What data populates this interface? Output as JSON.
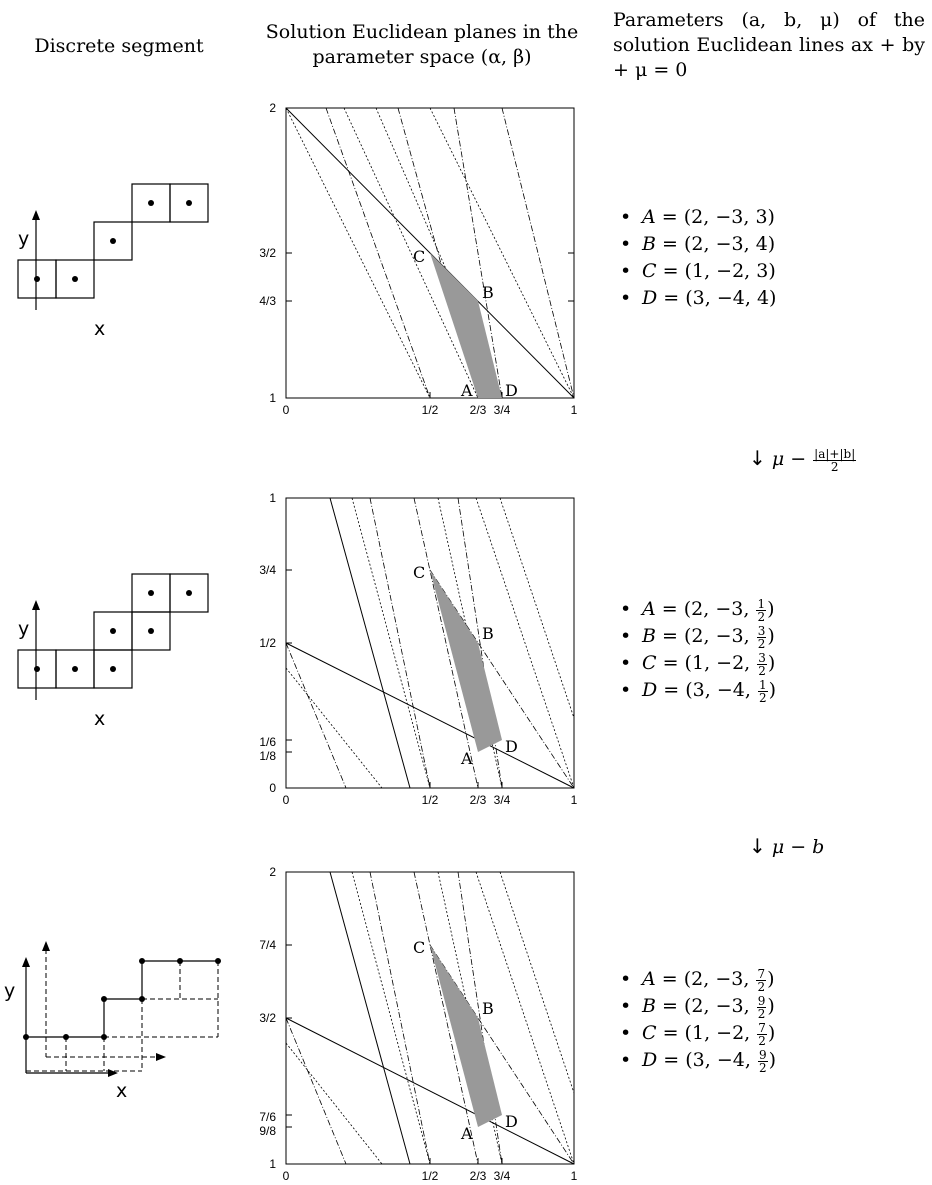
{
  "headers": {
    "col1": "Discrete segment",
    "col2": "Solution Euclidean planes in the parameter space (α, β)",
    "col3": "Parameters (a, b, μ) of the solution Euclidean lines ax + by + μ = 0"
  },
  "transforms": [
    {
      "arrow": "↓",
      "text": "μ − ",
      "num": "|a|+|b|",
      "den": "2"
    },
    {
      "arrow": "↓",
      "text": "μ − b"
    }
  ],
  "panels": [
    {
      "params": [
        {
          "label": "A",
          "a": "2",
          "b": "−3",
          "mu": "3"
        },
        {
          "label": "B",
          "a": "2",
          "b": "−3",
          "mu": "4"
        },
        {
          "label": "C",
          "a": "1",
          "b": "−2",
          "mu": "3"
        },
        {
          "label": "D",
          "a": "3",
          "b": "−4",
          "mu": "4"
        }
      ],
      "plot": {
        "x_ticks": [
          "0",
          "1/2",
          "2/3",
          "3/4",
          "1"
        ],
        "y_ticks": [
          "1",
          "4/3",
          "3/2",
          "2"
        ],
        "point_labels": [
          "A",
          "B",
          "C",
          "D"
        ]
      },
      "axes": {
        "x": "x",
        "y": "y"
      }
    },
    {
      "params": [
        {
          "label": "A",
          "a": "2",
          "b": "−3",
          "mun": "1",
          "mud": "2"
        },
        {
          "label": "B",
          "a": "2",
          "b": "−3",
          "mun": "3",
          "mud": "2"
        },
        {
          "label": "C",
          "a": "1",
          "b": "−2",
          "mun": "3",
          "mud": "2"
        },
        {
          "label": "D",
          "a": "3",
          "b": "−4",
          "mun": "1",
          "mud": "2"
        }
      ],
      "plot": {
        "x_ticks": [
          "0",
          "1/2",
          "2/3",
          "3/4",
          "1"
        ],
        "y_ticks": [
          "0",
          "1/8",
          "1/6",
          "1/2",
          "3/4",
          "1"
        ],
        "point_labels": [
          "A",
          "B",
          "C",
          "D"
        ]
      },
      "axes": {
        "x": "x",
        "y": "y"
      }
    },
    {
      "params": [
        {
          "label": "A",
          "a": "2",
          "b": "−3",
          "mun": "7",
          "mud": "2"
        },
        {
          "label": "B",
          "a": "2",
          "b": "−3",
          "mun": "9",
          "mud": "2"
        },
        {
          "label": "C",
          "a": "1",
          "b": "−2",
          "mun": "7",
          "mud": "2"
        },
        {
          "label": "D",
          "a": "3",
          "b": "−4",
          "mun": "9",
          "mud": "2"
        }
      ],
      "plot": {
        "x_ticks": [
          "0",
          "1/2",
          "2/3",
          "3/4",
          "1"
        ],
        "y_ticks": [
          "1",
          "9/8",
          "7/6",
          "3/2",
          "7/4",
          "2"
        ],
        "point_labels": [
          "A",
          "B",
          "C",
          "D"
        ]
      },
      "axes": {
        "x": "x",
        "y": "y"
      }
    }
  ]
}
